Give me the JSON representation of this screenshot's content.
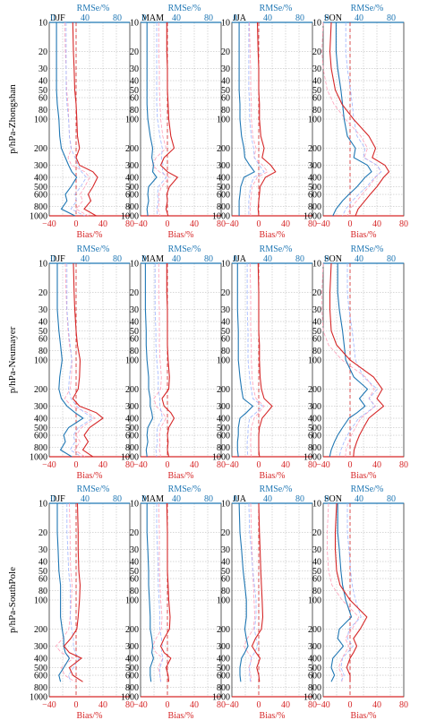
{
  "figure": {
    "row_labels": [
      "p/hPa-Zhongshan",
      "p/hPa-Neumayer",
      "p/hPa-SouthPole"
    ],
    "season_labels": [
      "DJF",
      "MAM",
      "JJA",
      "SON"
    ],
    "top_axis_label": "RMSe/%",
    "bottom_axis_label": "Bias/%",
    "top_ticks": [
      "0",
      "40",
      "80"
    ],
    "bottom_ticks": [
      "−40",
      "0",
      "40",
      "80"
    ],
    "y_ticks": [
      "10",
      "20",
      "30",
      "40",
      "50",
      "60",
      "80",
      "100",
      "200",
      "300",
      "400",
      "500",
      "600",
      "800",
      "1000"
    ],
    "colors": {
      "bias": "#d62728",
      "rmse": "#1f77b4",
      "bias_ref": "#ff9fb8",
      "rmse_ref": "#9fb6ff",
      "grid": "#b0b0b0"
    }
  },
  "chart_data": [
    {
      "type": "line",
      "station": "Zhongshan",
      "season": "DJF",
      "y_scale": "log",
      "y_reversed": true,
      "ylim": [
        10,
        1000
      ],
      "bias_xlim": [
        -40,
        80
      ],
      "rmse_xlim": [
        0,
        80
      ],
      "pressure": [
        10,
        20,
        30,
        50,
        70,
        100,
        150,
        200,
        250,
        300,
        350,
        400,
        500,
        600,
        700,
        850,
        1000
      ],
      "series": [
        {
          "axis": "bias",
          "values": [
            -5,
            -4,
            -3,
            -2,
            0,
            1,
            2,
            5,
            0,
            5,
            25,
            32,
            25,
            18,
            22,
            12,
            30
          ]
        },
        {
          "axis": "rmse",
          "values": [
            9,
            9,
            9,
            9,
            10,
            12,
            13,
            15,
            20,
            24,
            28,
            34,
            27,
            20,
            22,
            15,
            32
          ]
        }
      ]
    },
    {
      "type": "line",
      "station": "Zhongshan",
      "season": "MAM",
      "y_scale": "log",
      "y_reversed": true,
      "ylim": [
        10,
        1000
      ],
      "bias_xlim": [
        -40,
        80
      ],
      "rmse_xlim": [
        0,
        80
      ],
      "pressure": [
        10,
        20,
        30,
        50,
        70,
        100,
        150,
        200,
        250,
        300,
        350,
        400,
        500,
        600,
        700,
        850,
        1000
      ],
      "series": [
        {
          "axis": "bias",
          "values": [
            -1,
            -1,
            0,
            0,
            1,
            2,
            5,
            10,
            -5,
            -10,
            0,
            15,
            3,
            -1,
            0,
            -2,
            1
          ]
        },
        {
          "axis": "rmse",
          "values": [
            8,
            8,
            8,
            8,
            8,
            9,
            12,
            15,
            14,
            16,
            15,
            20,
            10,
            9,
            10,
            8,
            9
          ]
        }
      ]
    },
    {
      "type": "line",
      "station": "Zhongshan",
      "season": "JJA",
      "y_scale": "log",
      "y_reversed": true,
      "ylim": [
        10,
        1000
      ],
      "bias_xlim": [
        -40,
        80
      ],
      "rmse_xlim": [
        0,
        80
      ],
      "pressure": [
        10,
        20,
        30,
        50,
        70,
        100,
        150,
        200,
        250,
        300,
        350,
        400,
        500,
        600,
        700,
        850,
        1000
      ],
      "series": [
        {
          "axis": "bias",
          "values": [
            -2,
            -1,
            0,
            0,
            1,
            1,
            3,
            8,
            5,
            18,
            25,
            10,
            2,
            1,
            0,
            -1,
            0
          ]
        },
        {
          "axis": "rmse",
          "values": [
            9,
            9,
            9,
            9,
            10,
            10,
            12,
            15,
            16,
            22,
            28,
            15,
            11,
            10,
            9,
            9,
            9
          ]
        }
      ]
    },
    {
      "type": "line",
      "station": "Zhongshan",
      "season": "SON",
      "y_scale": "log",
      "y_reversed": true,
      "ylim": [
        10,
        1000
      ],
      "bias_xlim": [
        -40,
        80
      ],
      "rmse_xlim": [
        0,
        80
      ],
      "pressure": [
        10,
        20,
        30,
        50,
        70,
        100,
        150,
        200,
        250,
        300,
        350,
        400,
        500,
        600,
        700,
        850,
        1000
      ],
      "series": [
        {
          "axis": "bias",
          "values": [
            -28,
            -30,
            -28,
            -22,
            -12,
            5,
            28,
            38,
            33,
            52,
            58,
            50,
            40,
            30,
            22,
            12,
            8
          ]
        },
        {
          "axis": "rmse",
          "values": [
            16,
            16,
            18,
            22,
            24,
            26,
            30,
            40,
            38,
            55,
            60,
            52,
            42,
            32,
            24,
            16,
            12
          ]
        }
      ]
    },
    {
      "type": "line",
      "station": "Neumayer",
      "season": "DJF",
      "y_scale": "log",
      "y_reversed": true,
      "ylim": [
        10,
        1000
      ],
      "bias_xlim": [
        -40,
        80
      ],
      "rmse_xlim": [
        0,
        80
      ],
      "pressure": [
        10,
        20,
        30,
        50,
        70,
        100,
        150,
        200,
        250,
        300,
        350,
        400,
        500,
        600,
        700,
        850,
        1000
      ],
      "series": [
        {
          "axis": "bias",
          "values": [
            -4,
            -3,
            -2,
            0,
            2,
            6,
            5,
            3,
            -5,
            5,
            30,
            40,
            20,
            12,
            18,
            10,
            25
          ]
        },
        {
          "axis": "rmse",
          "values": [
            10,
            10,
            10,
            12,
            14,
            16,
            13,
            12,
            15,
            22,
            32,
            42,
            24,
            18,
            20,
            14,
            28
          ]
        }
      ]
    },
    {
      "type": "line",
      "station": "Neumayer",
      "season": "MAM",
      "y_scale": "log",
      "y_reversed": true,
      "ylim": [
        10,
        1000
      ],
      "bias_xlim": [
        -40,
        80
      ],
      "rmse_xlim": [
        0,
        80
      ],
      "pressure": [
        10,
        20,
        30,
        50,
        70,
        100,
        150,
        200,
        250,
        300,
        350,
        400,
        500,
        600,
        700,
        850,
        1000
      ],
      "series": [
        {
          "axis": "bias",
          "values": [
            -1,
            -1,
            0,
            0,
            0,
            1,
            3,
            2,
            -8,
            -5,
            5,
            10,
            2,
            0,
            1,
            0,
            2
          ]
        },
        {
          "axis": "rmse",
          "values": [
            6,
            6,
            6,
            7,
            7,
            8,
            10,
            10,
            12,
            12,
            14,
            15,
            9,
            8,
            9,
            7,
            8
          ]
        }
      ]
    },
    {
      "type": "line",
      "station": "Neumayer",
      "season": "JJA",
      "y_scale": "log",
      "y_reversed": true,
      "ylim": [
        10,
        1000
      ],
      "bias_xlim": [
        -40,
        80
      ],
      "rmse_xlim": [
        0,
        80
      ],
      "pressure": [
        10,
        20,
        30,
        50,
        70,
        100,
        150,
        200,
        250,
        300,
        350,
        400,
        500,
        600,
        700,
        850,
        1000
      ],
      "series": [
        {
          "axis": "bias",
          "values": [
            -1,
            0,
            0,
            0,
            1,
            1,
            2,
            4,
            8,
            20,
            12,
            5,
            1,
            0,
            0,
            0,
            1
          ]
        },
        {
          "axis": "rmse",
          "values": [
            7,
            7,
            7,
            8,
            8,
            8,
            10,
            12,
            14,
            26,
            18,
            10,
            8,
            8,
            7,
            7,
            8
          ]
        }
      ]
    },
    {
      "type": "line",
      "station": "Neumayer",
      "season": "SON",
      "y_scale": "log",
      "y_reversed": true,
      "ylim": [
        10,
        1000
      ],
      "bias_xlim": [
        -40,
        80
      ],
      "rmse_xlim": [
        0,
        80
      ],
      "pressure": [
        10,
        20,
        30,
        50,
        70,
        100,
        150,
        200,
        250,
        300,
        350,
        400,
        500,
        600,
        700,
        850,
        1000
      ],
      "series": [
        {
          "axis": "bias",
          "values": [
            -28,
            -30,
            -30,
            -28,
            -20,
            0,
            35,
            48,
            40,
            50,
            38,
            28,
            20,
            14,
            10,
            6,
            5
          ]
        },
        {
          "axis": "rmse",
          "values": [
            18,
            18,
            20,
            24,
            26,
            28,
            38,
            55,
            45,
            52,
            42,
            32,
            24,
            18,
            14,
            10,
            8
          ]
        }
      ]
    },
    {
      "type": "line",
      "station": "SouthPole",
      "season": "DJF",
      "y_scale": "log",
      "y_reversed": true,
      "ylim": [
        10,
        1000
      ],
      "bias_xlim": [
        -40,
        80
      ],
      "rmse_xlim": [
        0,
        80
      ],
      "pressure": [
        10,
        20,
        30,
        50,
        70,
        100,
        150,
        200,
        250,
        300,
        350,
        400,
        500,
        600,
        700
      ],
      "series": [
        {
          "axis": "bias",
          "values": [
            2,
            3,
            3,
            4,
            6,
            5,
            3,
            1,
            -8,
            -18,
            -10,
            8,
            -10,
            -5,
            10
          ]
        },
        {
          "axis": "rmse",
          "values": [
            10,
            10,
            11,
            12,
            14,
            14,
            14,
            16,
            18,
            18,
            20,
            25,
            18,
            12,
            14
          ]
        }
      ]
    },
    {
      "type": "line",
      "station": "SouthPole",
      "season": "MAM",
      "y_scale": "log",
      "y_reversed": true,
      "ylim": [
        10,
        1000
      ],
      "bias_xlim": [
        -40,
        80
      ],
      "rmse_xlim": [
        0,
        80
      ],
      "pressure": [
        10,
        20,
        30,
        50,
        70,
        100,
        150,
        200,
        250,
        300,
        350,
        400,
        500,
        600,
        700
      ],
      "series": [
        {
          "axis": "bias",
          "values": [
            -1,
            0,
            0,
            0,
            1,
            2,
            4,
            3,
            -5,
            -10,
            -5,
            5,
            -2,
            1,
            2
          ]
        },
        {
          "axis": "rmse",
          "values": [
            8,
            8,
            9,
            10,
            10,
            11,
            12,
            12,
            14,
            15,
            14,
            16,
            12,
            12,
            13
          ]
        }
      ]
    },
    {
      "type": "line",
      "station": "SouthPole",
      "season": "JJA",
      "y_scale": "log",
      "y_reversed": true,
      "ylim": [
        10,
        1000
      ],
      "bias_xlim": [
        -40,
        80
      ],
      "rmse_xlim": [
        0,
        80
      ],
      "pressure": [
        10,
        20,
        30,
        50,
        70,
        100,
        150,
        200,
        250,
        300,
        350,
        400,
        500,
        600,
        700
      ],
      "series": [
        {
          "axis": "bias",
          "values": [
            0,
            1,
            2,
            3,
            4,
            5,
            6,
            4,
            -5,
            -10,
            -4,
            2,
            -3,
            0,
            1
          ]
        },
        {
          "axis": "rmse",
          "values": [
            9,
            10,
            12,
            14,
            16,
            18,
            18,
            16,
            18,
            20,
            16,
            12,
            10,
            10,
            11
          ]
        }
      ]
    },
    {
      "type": "line",
      "station": "SouthPole",
      "season": "SON",
      "y_scale": "log",
      "y_reversed": true,
      "ylim": [
        10,
        1000
      ],
      "bias_xlim": [
        -40,
        80
      ],
      "rmse_xlim": [
        0,
        80
      ],
      "pressure": [
        10,
        20,
        30,
        50,
        70,
        100,
        150,
        200,
        250,
        300,
        350,
        400,
        500,
        600,
        700
      ],
      "series": [
        {
          "axis": "bias",
          "values": [
            -20,
            -22,
            -22,
            -20,
            -15,
            0,
            25,
            15,
            5,
            10,
            5,
            0,
            -5,
            0,
            0
          ]
        },
        {
          "axis": "rmse",
          "values": [
            18,
            18,
            20,
            22,
            24,
            28,
            35,
            20,
            18,
            25,
            18,
            12,
            10,
            14,
            10
          ]
        }
      ]
    }
  ]
}
